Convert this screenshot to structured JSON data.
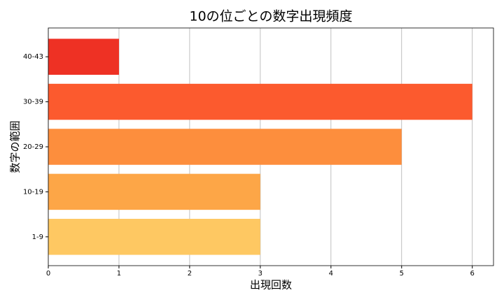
{
  "chart_data": {
    "type": "barh",
    "title": "10の位ごとの数字出現頻度",
    "x_label": "出現回数",
    "y_label": "数字の範囲",
    "categories": [
      "1-9",
      "10-19",
      "20-29",
      "30-39",
      "40-43"
    ],
    "values": [
      3,
      3,
      5,
      6,
      1
    ],
    "colors": [
      "#fec862",
      "#fda647",
      "#fd8e3d",
      "#fc5a2e",
      "#ee3124"
    ],
    "xlim": [
      0,
      6.3
    ],
    "xticks": [
      0,
      1,
      2,
      3,
      4,
      5,
      6
    ],
    "grid": true
  }
}
